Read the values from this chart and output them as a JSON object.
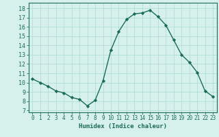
{
  "x": [
    0,
    1,
    2,
    3,
    4,
    5,
    6,
    7,
    8,
    9,
    10,
    11,
    12,
    13,
    14,
    15,
    16,
    17,
    18,
    19,
    20,
    21,
    22,
    23
  ],
  "y": [
    10.4,
    10.0,
    9.6,
    9.1,
    8.9,
    8.4,
    8.2,
    7.5,
    8.1,
    10.2,
    13.5,
    15.5,
    16.8,
    17.4,
    17.5,
    17.8,
    17.1,
    16.2,
    14.6,
    13.0,
    12.2,
    11.1,
    9.1,
    8.5
  ],
  "line_color": "#1a6b5a",
  "marker": "D",
  "marker_size": 2.2,
  "bg_color": "#d6f0ec",
  "grid_color": "#b0ddd5",
  "xlabel": "Humidex (Indice chaleur)",
  "ylabel_ticks": [
    7,
    8,
    9,
    10,
    11,
    12,
    13,
    14,
    15,
    16,
    17,
    18
  ],
  "ylim": [
    6.8,
    18.6
  ],
  "xlim": [
    -0.5,
    23.5
  ],
  "font_color": "#1a6b5a",
  "tick_color": "#1a6b5a",
  "axis_color": "#1a6b5a",
  "linewidth": 1.0,
  "xlabel_fontsize": 6.5,
  "ytick_fontsize": 6.0,
  "xtick_fontsize": 5.5
}
